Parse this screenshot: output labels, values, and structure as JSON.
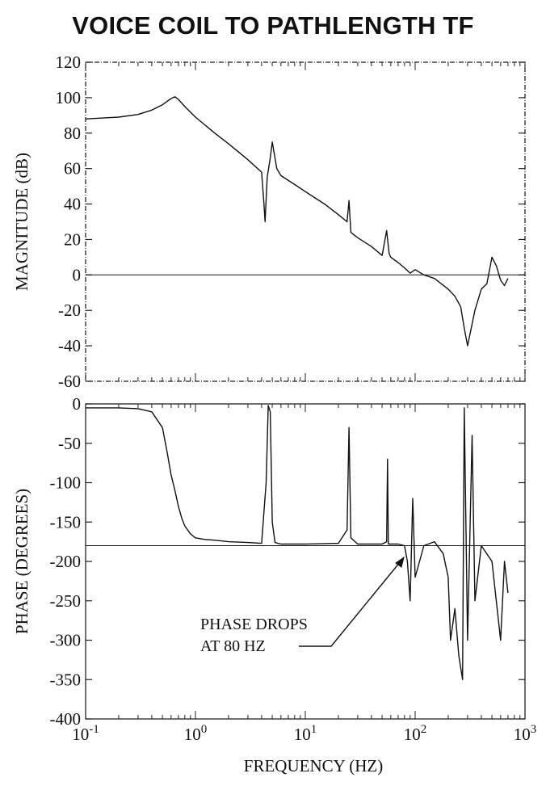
{
  "chart_data": [
    {
      "type": "line",
      "title": "VOICE COIL TO PATHLENGTH TF",
      "ylabel": "MAGNITUDE (dB)",
      "xlabel": "",
      "xscale": "log",
      "xlim": [
        0.1,
        1000
      ],
      "ylim": [
        -60,
        120
      ],
      "yticks": [
        "120",
        "100",
        "80",
        "60",
        "40",
        "20",
        "0",
        "-20",
        "-40",
        "-60"
      ],
      "grid": false,
      "series": [
        {
          "x": [
            0.1,
            0.2,
            0.3,
            0.4,
            0.5,
            0.6,
            0.65,
            0.7,
            0.8,
            1.0,
            1.5,
            2.0,
            3.0,
            4.0,
            4.2,
            4.3,
            4.5,
            4.8,
            5.0,
            5.5,
            6.0,
            8.0,
            10,
            15,
            20,
            24,
            25,
            26,
            30,
            40,
            50,
            55,
            58,
            60,
            70,
            80,
            90,
            100,
            120,
            150,
            200,
            230,
            260,
            280,
            300,
            350,
            400,
            450,
            500,
            550,
            600,
            650,
            700
          ],
          "values": [
            88,
            89,
            90.5,
            93,
            96,
            99.5,
            100.5,
            99,
            95,
            89,
            80,
            74,
            65,
            58,
            40,
            30,
            55,
            66,
            75,
            60,
            56,
            51,
            47,
            40,
            34,
            30,
            42,
            24,
            21,
            16,
            11,
            25,
            12,
            10,
            7,
            4,
            1,
            3,
            0,
            -2,
            -8,
            -12,
            -18,
            -30,
            -40,
            -20,
            -8,
            -5,
            10,
            5,
            -3,
            -6,
            -2
          ]
        },
        {
          "name": "0 dB reference",
          "x": [
            0.1,
            1000
          ],
          "values": [
            0,
            0
          ]
        }
      ]
    },
    {
      "type": "line",
      "ylabel": "PHASE (DEGREES)",
      "xlabel": "FREQUENCY (HZ)",
      "xscale": "log",
      "xlim": [
        0.1,
        1000
      ],
      "ylim": [
        -400,
        0
      ],
      "yticks": [
        "0",
        "-50",
        "-100",
        "-150",
        "-200",
        "-250",
        "-300",
        "-350",
        "-400"
      ],
      "xticks": [
        {
          "base": "10",
          "exp": "-1"
        },
        {
          "base": "10",
          "exp": "0"
        },
        {
          "base": "10",
          "exp": "1"
        },
        {
          "base": "10",
          "exp": "2"
        },
        {
          "base": "10",
          "exp": "3"
        }
      ],
      "grid": false,
      "series": [
        {
          "x": [
            0.1,
            0.2,
            0.3,
            0.4,
            0.5,
            0.55,
            0.6,
            0.65,
            0.7,
            0.75,
            0.8,
            0.9,
            1.0,
            1.2,
            1.5,
            2.0,
            3.0,
            4.0,
            4.4,
            4.6,
            4.8,
            5.0,
            5.3,
            6.0,
            10,
            20,
            24,
            25,
            26,
            30,
            40,
            50,
            55,
            56,
            57,
            60,
            70,
            80,
            85,
            90,
            95,
            100,
            120,
            150,
            180,
            200,
            210,
            230,
            250,
            270,
            280,
            300,
            330,
            350,
            400,
            500,
            600,
            650,
            700
          ],
          "values": [
            -5,
            -5,
            -6,
            -10,
            -30,
            -60,
            -90,
            -110,
            -130,
            -145,
            -155,
            -165,
            -170,
            -172,
            -173,
            -175,
            -176,
            -177,
            -100,
            -2,
            -10,
            -150,
            -176,
            -178,
            -178,
            -177,
            -160,
            -30,
            -170,
            -178,
            -178,
            -178,
            -175,
            -70,
            -178,
            -178,
            -178,
            -180,
            -200,
            -250,
            -120,
            -220,
            -180,
            -175,
            -190,
            -220,
            -300,
            -260,
            -320,
            -350,
            -5,
            -300,
            -40,
            -250,
            -180,
            -200,
            -300,
            -200,
            -240
          ]
        },
        {
          "name": "-180 reference",
          "x": [
            0.1,
            1000
          ],
          "values": [
            -180,
            -180
          ]
        }
      ],
      "annotations": [
        "PHASE DROPS",
        "AT 80 HZ"
      ]
    }
  ]
}
